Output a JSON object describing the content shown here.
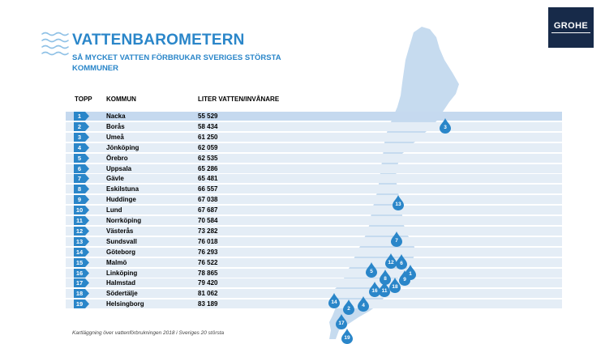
{
  "brand": {
    "logo_text": "GROHE",
    "accent": "#2a86c9",
    "dark": "#172a49"
  },
  "title": "VATTENBAROMETERN",
  "subtitle": "SÅ MYCKET VATTEN FÖRBRUKAR SVERIGES STÖRSTA KOMMUNER",
  "table": {
    "headers": {
      "rank": "TOPP",
      "municipality": "KOMMUN",
      "value": "LITER VATTEN/INVÅNARE"
    },
    "rows": [
      {
        "rank": "1",
        "municipality": "Nacka",
        "value": "55 529"
      },
      {
        "rank": "2",
        "municipality": "Borås",
        "value": "58 434"
      },
      {
        "rank": "3",
        "municipality": "Umeå",
        "value": "61 250"
      },
      {
        "rank": "4",
        "municipality": "Jönköping",
        "value": "62 059"
      },
      {
        "rank": "5",
        "municipality": "Örebro",
        "value": "62 535"
      },
      {
        "rank": "6",
        "municipality": "Uppsala",
        "value": "65 286"
      },
      {
        "rank": "7",
        "municipality": "Gävle",
        "value": "65 481"
      },
      {
        "rank": "8",
        "municipality": "Eskilstuna",
        "value": "66 557"
      },
      {
        "rank": "9",
        "municipality": "Huddinge",
        "value": "67 038"
      },
      {
        "rank": "10",
        "municipality": "Lund",
        "value": "67 687"
      },
      {
        "rank": "11",
        "municipality": "Norrköping",
        "value": "70 584"
      },
      {
        "rank": "12",
        "municipality": "Västerås",
        "value": "73 282"
      },
      {
        "rank": "13",
        "municipality": "Sundsvall",
        "value": "76 018"
      },
      {
        "rank": "14",
        "municipality": "Göteborg",
        "value": "76 293"
      },
      {
        "rank": "15",
        "municipality": "Malmö",
        "value": "76 522"
      },
      {
        "rank": "16",
        "municipality": "Linköping",
        "value": "78 865"
      },
      {
        "rank": "17",
        "municipality": "Halmstad",
        "value": "79 420"
      },
      {
        "rank": "18",
        "municipality": "Södertälje",
        "value": "81 062"
      },
      {
        "rank": "19",
        "municipality": "Helsingborg",
        "value": "83 189"
      }
    ]
  },
  "map_pins": [
    "3",
    "13",
    "7",
    "12",
    "6",
    "5",
    "1",
    "8",
    "9",
    "18",
    "16",
    "11",
    "4",
    "14",
    "2",
    "17",
    "19"
  ],
  "footnote": "Kartläggning över vattenförbrukningen 2018 i Sveriges 20 största"
}
